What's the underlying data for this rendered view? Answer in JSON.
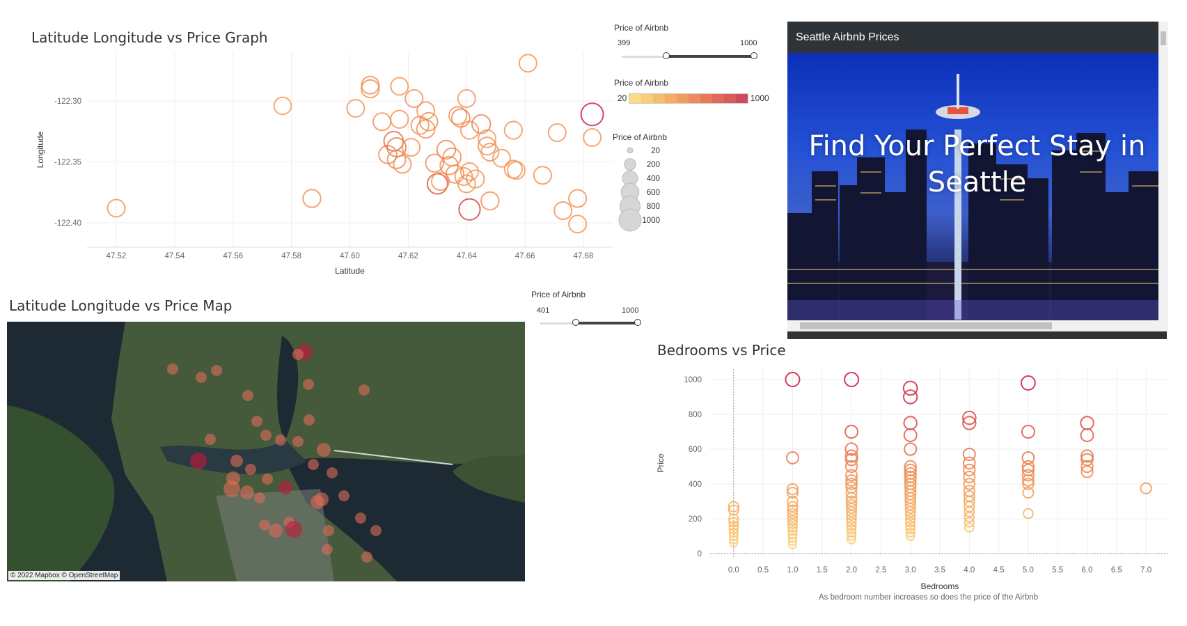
{
  "graph1": {
    "title": "Latitude Longitude vs Price Graph",
    "chart_data": {
      "type": "scatter",
      "title": "Latitude Longitude vs Price Graph",
      "xlabel": "Latitude",
      "ylabel": "Longitude",
      "xlim": [
        47.51,
        47.69
      ],
      "ylim": [
        -122.42,
        -122.26
      ],
      "xticks": [
        "47.52",
        "47.54",
        "47.56",
        "47.58",
        "47.60",
        "47.62",
        "47.64",
        "47.66",
        "47.68"
      ],
      "yticks": [
        "-122.30",
        "-122.35",
        "-122.40"
      ],
      "points": [
        {
          "x": 47.52,
          "y": -122.388,
          "p": 420
        },
        {
          "x": 47.577,
          "y": -122.304,
          "p": 400
        },
        {
          "x": 47.587,
          "y": -122.38,
          "p": 450
        },
        {
          "x": 47.602,
          "y": -122.306,
          "p": 420
        },
        {
          "x": 47.607,
          "y": -122.287,
          "p": 430
        },
        {
          "x": 47.607,
          "y": -122.29,
          "p": 450
        },
        {
          "x": 47.611,
          "y": -122.317,
          "p": 430
        },
        {
          "x": 47.613,
          "y": -122.344,
          "p": 470
        },
        {
          "x": 47.615,
          "y": -122.333,
          "p": 620
        },
        {
          "x": 47.616,
          "y": -122.338,
          "p": 560
        },
        {
          "x": 47.616,
          "y": -122.348,
          "p": 480
        },
        {
          "x": 47.617,
          "y": -122.288,
          "p": 420
        },
        {
          "x": 47.617,
          "y": -122.315,
          "p": 440
        },
        {
          "x": 47.618,
          "y": -122.352,
          "p": 430
        },
        {
          "x": 47.621,
          "y": -122.338,
          "p": 430
        },
        {
          "x": 47.622,
          "y": -122.298,
          "p": 430
        },
        {
          "x": 47.624,
          "y": -122.32,
          "p": 440
        },
        {
          "x": 47.626,
          "y": -122.308,
          "p": 420
        },
        {
          "x": 47.626,
          "y": -122.323,
          "p": 470
        },
        {
          "x": 47.627,
          "y": -122.317,
          "p": 470
        },
        {
          "x": 47.629,
          "y": -122.351,
          "p": 450
        },
        {
          "x": 47.63,
          "y": -122.368,
          "p": 720
        },
        {
          "x": 47.631,
          "y": -122.366,
          "p": 430
        },
        {
          "x": 47.633,
          "y": -122.34,
          "p": 520
        },
        {
          "x": 47.634,
          "y": -122.353,
          "p": 470
        },
        {
          "x": 47.635,
          "y": -122.346,
          "p": 460
        },
        {
          "x": 47.636,
          "y": -122.36,
          "p": 450
        },
        {
          "x": 47.637,
          "y": -122.312,
          "p": 440
        },
        {
          "x": 47.638,
          "y": -122.314,
          "p": 480
        },
        {
          "x": 47.639,
          "y": -122.362,
          "p": 420
        },
        {
          "x": 47.64,
          "y": -122.298,
          "p": 420
        },
        {
          "x": 47.64,
          "y": -122.368,
          "p": 420
        },
        {
          "x": 47.641,
          "y": -122.389,
          "p": 830
        },
        {
          "x": 47.641,
          "y": -122.358,
          "p": 420
        },
        {
          "x": 47.641,
          "y": -122.324,
          "p": 440
        },
        {
          "x": 47.643,
          "y": -122.364,
          "p": 440
        },
        {
          "x": 47.645,
          "y": -122.319,
          "p": 520
        },
        {
          "x": 47.647,
          "y": -122.331,
          "p": 420
        },
        {
          "x": 47.647,
          "y": -122.337,
          "p": 440
        },
        {
          "x": 47.648,
          "y": -122.382,
          "p": 460
        },
        {
          "x": 47.648,
          "y": -122.342,
          "p": 420
        },
        {
          "x": 47.652,
          "y": -122.347,
          "p": 420
        },
        {
          "x": 47.656,
          "y": -122.324,
          "p": 440
        },
        {
          "x": 47.656,
          "y": -122.356,
          "p": 440
        },
        {
          "x": 47.657,
          "y": -122.357,
          "p": 420
        },
        {
          "x": 47.661,
          "y": -122.269,
          "p": 420
        },
        {
          "x": 47.666,
          "y": -122.361,
          "p": 430
        },
        {
          "x": 47.671,
          "y": -122.326,
          "p": 420
        },
        {
          "x": 47.673,
          "y": -122.39,
          "p": 430
        },
        {
          "x": 47.678,
          "y": -122.38,
          "p": 430
        },
        {
          "x": 47.678,
          "y": -122.401,
          "p": 420
        },
        {
          "x": 47.683,
          "y": -122.311,
          "p": 1000
        },
        {
          "x": 47.683,
          "y": -122.33,
          "p": 420
        }
      ]
    }
  },
  "slider1": {
    "title": "Price of Airbnb",
    "min": "399",
    "max": "1000",
    "low": 0.32,
    "high": 1.0
  },
  "colorLegend": {
    "title": "Price of Airbnb",
    "min": "20",
    "max": "1000",
    "colors": [
      "#fbdc85",
      "#f9cd7a",
      "#f7bd6e",
      "#f5ac66",
      "#f29c61",
      "#ee8b5d",
      "#e87a5b",
      "#e06a5a",
      "#d75a5c",
      "#cc4b5f"
    ]
  },
  "sizeLegend": {
    "title": "Price of Airbnb",
    "items": [
      "20",
      "200",
      "400",
      "600",
      "800",
      "1000"
    ]
  },
  "webpanel": {
    "header": "Seattle Airbnb Prices",
    "headline": "Find Your Perfect Stay in Seattle"
  },
  "map": {
    "title": "Latitude Longitude vs Price Map",
    "credit": "© 2022 Mapbox © OpenStreetMap"
  },
  "slider2": {
    "title": "Price of Airbnb",
    "min": "401",
    "max": "1000",
    "low": 0.34,
    "high": 1.0
  },
  "bedrooms": {
    "title": "Bedrooms vs Price",
    "caption": "As bedroom number increases so does the price of the Airbnb",
    "chart_data": {
      "type": "scatter",
      "title": "Bedrooms vs Price",
      "xlabel": "Bedrooms",
      "ylabel": "Price",
      "xlim": [
        -0.4,
        7.4
      ],
      "ylim": [
        -20,
        1060
      ],
      "xticks": [
        "0.0",
        "0.5",
        "1.0",
        "1.5",
        "2.0",
        "2.5",
        "3.0",
        "3.5",
        "4.0",
        "4.5",
        "5.0",
        "5.5",
        "6.0",
        "6.5",
        "7.0"
      ],
      "yticks": [
        "0",
        "200",
        "400",
        "600",
        "800",
        "1000"
      ],
      "points": [
        {
          "x": 0,
          "y": 270
        },
        {
          "x": 0,
          "y": 250
        },
        {
          "x": 0,
          "y": 200
        },
        {
          "x": 0,
          "y": 180
        },
        {
          "x": 0,
          "y": 160
        },
        {
          "x": 0,
          "y": 140
        },
        {
          "x": 0,
          "y": 120
        },
        {
          "x": 0,
          "y": 100
        },
        {
          "x": 0,
          "y": 80
        },
        {
          "x": 0,
          "y": 60
        },
        {
          "x": 1,
          "y": 1000
        },
        {
          "x": 1,
          "y": 550
        },
        {
          "x": 1,
          "y": 370
        },
        {
          "x": 1,
          "y": 350
        },
        {
          "x": 1,
          "y": 300
        },
        {
          "x": 1,
          "y": 270
        },
        {
          "x": 1,
          "y": 250
        },
        {
          "x": 1,
          "y": 230
        },
        {
          "x": 1,
          "y": 210
        },
        {
          "x": 1,
          "y": 190
        },
        {
          "x": 1,
          "y": 170
        },
        {
          "x": 1,
          "y": 150
        },
        {
          "x": 1,
          "y": 130
        },
        {
          "x": 1,
          "y": 110
        },
        {
          "x": 1,
          "y": 90
        },
        {
          "x": 1,
          "y": 70
        },
        {
          "x": 1,
          "y": 50
        },
        {
          "x": 2,
          "y": 1000
        },
        {
          "x": 2,
          "y": 700
        },
        {
          "x": 2,
          "y": 600
        },
        {
          "x": 2,
          "y": 560
        },
        {
          "x": 2,
          "y": 540
        },
        {
          "x": 2,
          "y": 500
        },
        {
          "x": 2,
          "y": 450
        },
        {
          "x": 2,
          "y": 420
        },
        {
          "x": 2,
          "y": 400
        },
        {
          "x": 2,
          "y": 380
        },
        {
          "x": 2,
          "y": 350
        },
        {
          "x": 2,
          "y": 320
        },
        {
          "x": 2,
          "y": 300
        },
        {
          "x": 2,
          "y": 280
        },
        {
          "x": 2,
          "y": 260
        },
        {
          "x": 2,
          "y": 240
        },
        {
          "x": 2,
          "y": 220
        },
        {
          "x": 2,
          "y": 200
        },
        {
          "x": 2,
          "y": 180
        },
        {
          "x": 2,
          "y": 160
        },
        {
          "x": 2,
          "y": 140
        },
        {
          "x": 2,
          "y": 120
        },
        {
          "x": 2,
          "y": 100
        },
        {
          "x": 2,
          "y": 80
        },
        {
          "x": 3,
          "y": 950
        },
        {
          "x": 3,
          "y": 900
        },
        {
          "x": 3,
          "y": 750
        },
        {
          "x": 3,
          "y": 680
        },
        {
          "x": 3,
          "y": 600
        },
        {
          "x": 3,
          "y": 500
        },
        {
          "x": 3,
          "y": 480
        },
        {
          "x": 3,
          "y": 460
        },
        {
          "x": 3,
          "y": 440
        },
        {
          "x": 3,
          "y": 420
        },
        {
          "x": 3,
          "y": 400
        },
        {
          "x": 3,
          "y": 380
        },
        {
          "x": 3,
          "y": 360
        },
        {
          "x": 3,
          "y": 340
        },
        {
          "x": 3,
          "y": 320
        },
        {
          "x": 3,
          "y": 300
        },
        {
          "x": 3,
          "y": 280
        },
        {
          "x": 3,
          "y": 260
        },
        {
          "x": 3,
          "y": 240
        },
        {
          "x": 3,
          "y": 220
        },
        {
          "x": 3,
          "y": 200
        },
        {
          "x": 3,
          "y": 180
        },
        {
          "x": 3,
          "y": 160
        },
        {
          "x": 3,
          "y": 140
        },
        {
          "x": 3,
          "y": 120
        },
        {
          "x": 3,
          "y": 100
        },
        {
          "x": 4,
          "y": 780
        },
        {
          "x": 4,
          "y": 750
        },
        {
          "x": 4,
          "y": 570
        },
        {
          "x": 4,
          "y": 520
        },
        {
          "x": 4,
          "y": 480
        },
        {
          "x": 4,
          "y": 440
        },
        {
          "x": 4,
          "y": 400
        },
        {
          "x": 4,
          "y": 360
        },
        {
          "x": 4,
          "y": 330
        },
        {
          "x": 4,
          "y": 300
        },
        {
          "x": 4,
          "y": 270
        },
        {
          "x": 4,
          "y": 240
        },
        {
          "x": 4,
          "y": 210
        },
        {
          "x": 4,
          "y": 180
        },
        {
          "x": 4,
          "y": 150
        },
        {
          "x": 5,
          "y": 980
        },
        {
          "x": 5,
          "y": 700
        },
        {
          "x": 5,
          "y": 550
        },
        {
          "x": 5,
          "y": 500
        },
        {
          "x": 5,
          "y": 480
        },
        {
          "x": 5,
          "y": 450
        },
        {
          "x": 5,
          "y": 420
        },
        {
          "x": 5,
          "y": 400
        },
        {
          "x": 5,
          "y": 350
        },
        {
          "x": 5,
          "y": 230
        },
        {
          "x": 6,
          "y": 750
        },
        {
          "x": 6,
          "y": 680
        },
        {
          "x": 6,
          "y": 560
        },
        {
          "x": 6,
          "y": 540
        },
        {
          "x": 6,
          "y": 500
        },
        {
          "x": 6,
          "y": 470
        },
        {
          "x": 7,
          "y": 375
        }
      ]
    }
  }
}
